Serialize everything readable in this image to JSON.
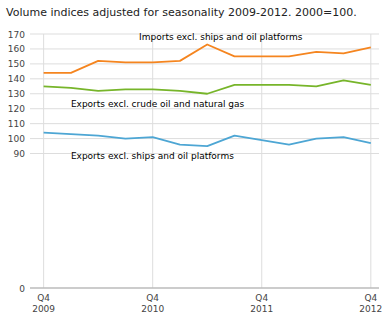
{
  "chart_data": {
    "type": "line",
    "title": "Volume indices adjusted for seasonality 2009-2012. 2000=100.",
    "categories": [
      "Q4\n2009",
      null,
      null,
      null,
      "Q4\n2010",
      null,
      null,
      null,
      "Q4\n2011",
      null,
      null,
      null,
      "Q4\n2012"
    ],
    "series": [
      {
        "name": "Imports excl. ships and oil platforms",
        "color": "#f5851f",
        "values": [
          144,
          144,
          152,
          151,
          151,
          152,
          163,
          155,
          155,
          155,
          158,
          157,
          161
        ]
      },
      {
        "name": "Exports excl. crude oil and natural gas",
        "color": "#77b52a",
        "values": [
          135,
          134,
          132,
          133,
          133,
          132,
          130,
          136,
          136,
          136,
          135,
          139,
          136
        ]
      },
      {
        "name": "Exports excl. ships and oil platforms",
        "color": "#4da6d4",
        "values": [
          104,
          103,
          102,
          100,
          101,
          96,
          95,
          102,
          99,
          96,
          100,
          101,
          97
        ]
      }
    ],
    "ylim": [
      0,
      170
    ],
    "yticks": [
      0,
      90,
      100,
      110,
      120,
      130,
      140,
      150,
      160,
      170
    ],
    "grid": true
  }
}
